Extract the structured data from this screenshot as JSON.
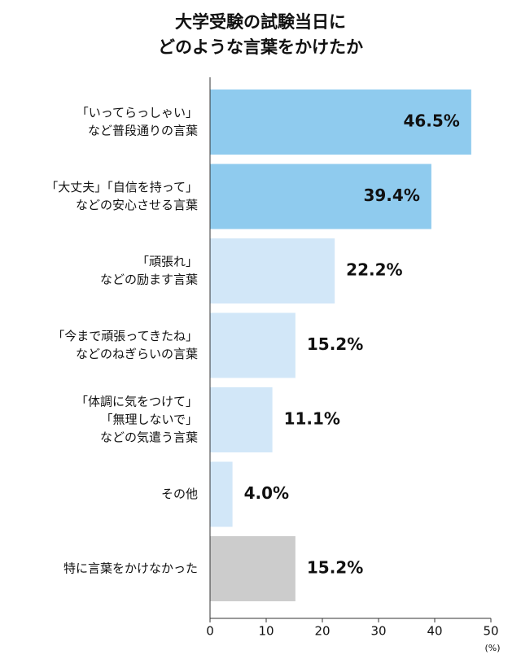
{
  "chart_data": {
    "type": "bar",
    "orientation": "horizontal",
    "title": [
      "大学受験の試験当日に",
      "どのような言葉をかけたか"
    ],
    "categories": [
      [
        "「いってらっしゃい」",
        "など普段通りの言葉"
      ],
      [
        "「大丈夫」「自信を持って」",
        "などの安心させる言葉"
      ],
      [
        "「頑張れ」",
        "などの励ます言葉"
      ],
      [
        "「今まで頑張ってきたね」",
        "などのねぎらいの言葉"
      ],
      [
        "「体調に気をつけて」",
        "「無理しないで」",
        "などの気遣う言葉"
      ],
      [
        "その他"
      ],
      [
        "特に言葉をかけなかった"
      ]
    ],
    "values": [
      46.5,
      39.4,
      22.2,
      15.2,
      11.1,
      4.0,
      15.2
    ],
    "value_labels": [
      "46.5%",
      "39.4%",
      "22.2%",
      "15.2%",
      "11.1%",
      "4.0%",
      "15.2%"
    ],
    "colors": [
      "#8fcbee",
      "#8fcbee",
      "#d2e7f8",
      "#d2e7f8",
      "#d2e7f8",
      "#d2e7f8",
      "#cccccc"
    ],
    "xlim": [
      0,
      50
    ],
    "xticks": [
      0,
      10,
      20,
      30,
      40,
      50
    ],
    "xlabel": "(%)"
  }
}
